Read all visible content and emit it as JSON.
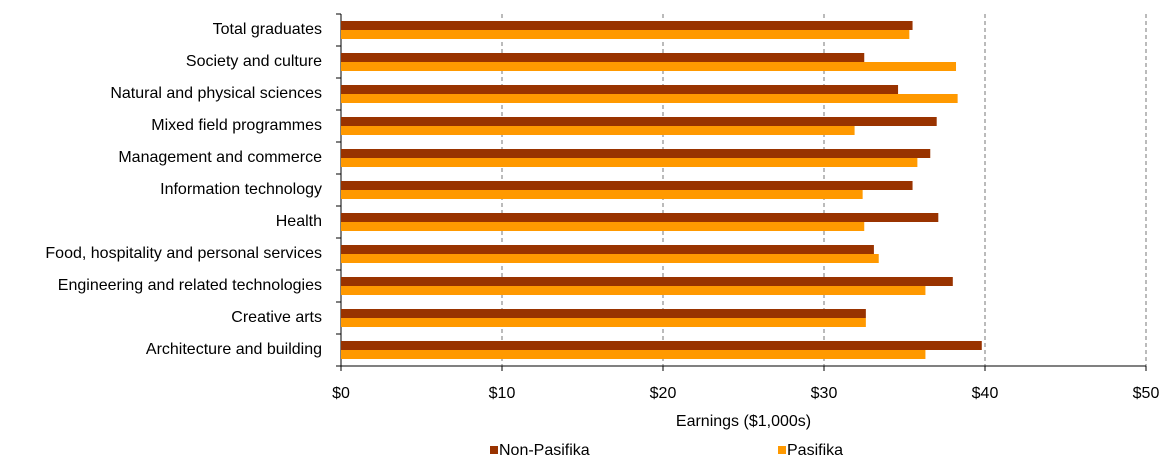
{
  "chart_data": {
    "type": "hbar",
    "categories": [
      "Total graduates",
      "Society and culture",
      "Natural and physical sciences",
      "Mixed field programmes",
      "Management and commerce",
      "Information technology",
      "Health",
      "Food, hospitality and personal services",
      "Engineering and related technologies",
      "Creative arts",
      "Architecture and building"
    ],
    "series": [
      {
        "name": "Non-Pasifika",
        "color": "#993300",
        "values": [
          35.5,
          32.5,
          34.6,
          37.0,
          36.6,
          35.5,
          37.1,
          33.1,
          38.0,
          32.6,
          39.8
        ]
      },
      {
        "name": "Pasifika",
        "color": "#ff9900",
        "values": [
          35.3,
          38.2,
          38.3,
          31.9,
          35.8,
          32.4,
          32.5,
          33.4,
          36.3,
          32.6,
          36.3
        ]
      }
    ],
    "xlabel": "Earnings ($1,000s)",
    "xlim": [
      0,
      50
    ],
    "xticks": [
      {
        "value": 0,
        "label": "$0"
      },
      {
        "value": 10,
        "label": "$10"
      },
      {
        "value": 20,
        "label": "$20"
      },
      {
        "value": 30,
        "label": "$30"
      },
      {
        "value": 40,
        "label": "$40"
      },
      {
        "value": 50,
        "label": "$50"
      }
    ],
    "grid": true,
    "legend": "bottom"
  }
}
